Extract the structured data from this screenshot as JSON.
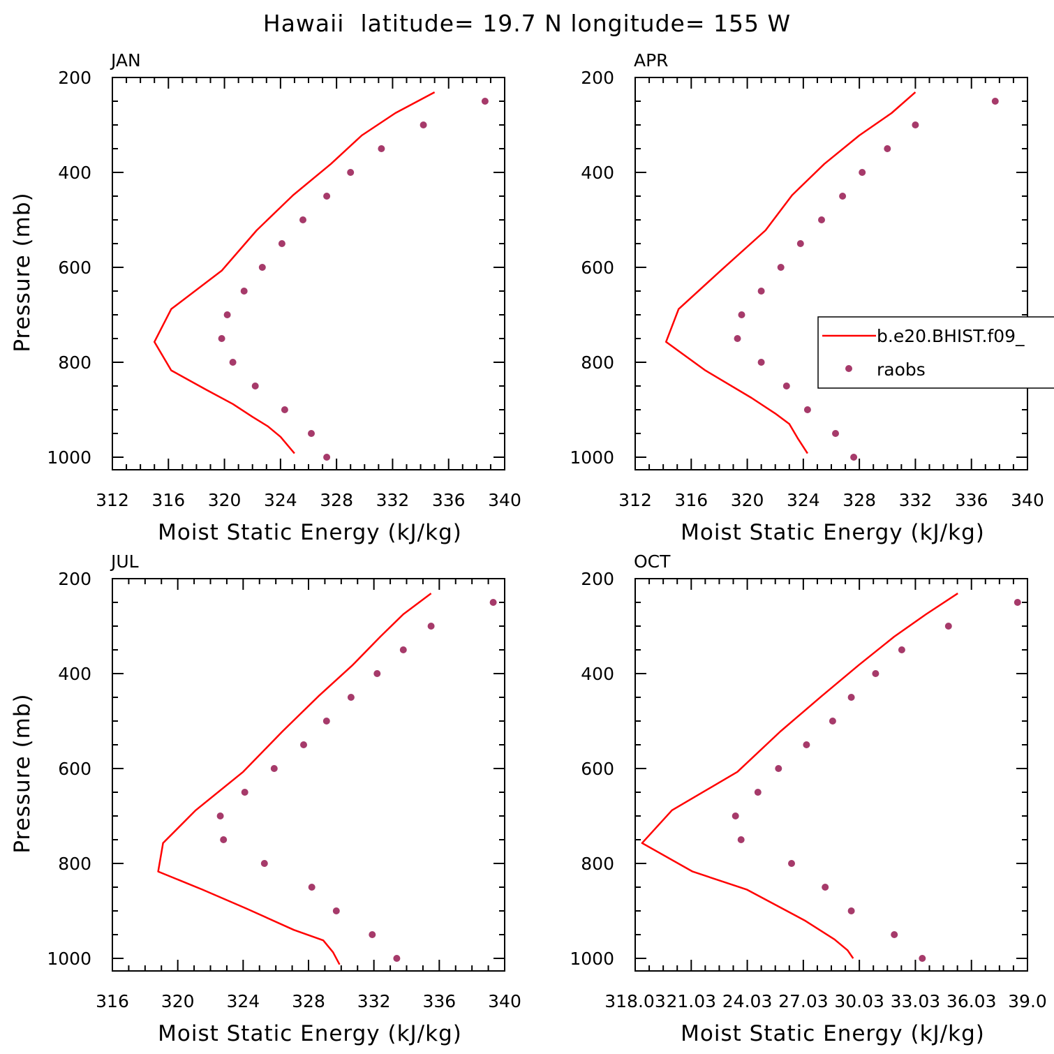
{
  "title": "Hawaii  latitude= 19.7 N longitude= 155 W",
  "colors": {
    "model": "#ff0000",
    "obs": "#a63a6a",
    "axis": "#000000"
  },
  "legend": {
    "model_label": "b.e20.BHIST.f09_",
    "obs_label": "raobs"
  },
  "chart_data": [
    {
      "type": "line",
      "panel": "JAN",
      "xlabel": "Moist Static Energy (kJ/kg)",
      "ylabel": "Pressure (mb)",
      "xlim": [
        312,
        340
      ],
      "ylim": [
        200,
        1000
      ],
      "y_inverted": true,
      "xticks": [
        "312",
        "316",
        "320",
        "324",
        "328",
        "332",
        "336",
        "340"
      ],
      "yticks": [
        "200",
        "400",
        "600",
        "800",
        "1000"
      ],
      "series": [
        {
          "kind": "line",
          "x": [
            335.0,
            332.2,
            329.8,
            327.6,
            324.9,
            322.3,
            319.8,
            316.2,
            315.0,
            316.2,
            318.7,
            320.6,
            322.0,
            323.1,
            324.0,
            325.0
          ],
          "y": [
            231,
            275,
            322,
            382,
            448,
            522,
            607,
            688,
            757,
            817,
            858,
            888,
            915,
            935,
            957,
            992
          ]
        },
        {
          "kind": "scatter",
          "x": [
            338.6,
            334.2,
            331.2,
            329.0,
            327.3,
            325.6,
            324.1,
            322.7,
            321.4,
            320.2,
            319.8,
            320.6,
            322.2,
            324.3,
            326.2,
            327.3
          ],
          "y": [
            250,
            300,
            350,
            400,
            450,
            500,
            550,
            600,
            650,
            700,
            750,
            800,
            850,
            900,
            950,
            1000
          ]
        }
      ]
    },
    {
      "type": "line",
      "panel": "APR",
      "xlabel": "Moist Static Energy (kJ/kg)",
      "ylabel": "",
      "xlim": [
        312,
        340
      ],
      "ylim": [
        200,
        1000
      ],
      "y_inverted": true,
      "xticks": [
        "312",
        "316",
        "320",
        "324",
        "328",
        "332",
        "336",
        "340"
      ],
      "yticks": [
        "200",
        "400",
        "600",
        "800",
        "1000"
      ],
      "series": [
        {
          "kind": "line",
          "x": [
            332.0,
            330.3,
            328.0,
            325.5,
            323.2,
            321.3,
            318.1,
            315.1,
            314.2,
            317.0,
            320.3,
            322.0,
            323.0,
            323.6,
            324.3
          ],
          "y": [
            231,
            275,
            322,
            382,
            448,
            522,
            607,
            688,
            757,
            817,
            875,
            908,
            930,
            960,
            992
          ]
        },
        {
          "kind": "scatter",
          "x": [
            337.7,
            332.0,
            330.0,
            328.2,
            326.8,
            325.3,
            323.8,
            322.4,
            321.0,
            319.6,
            319.3,
            321.0,
            322.8,
            324.3,
            326.3,
            327.6
          ],
          "y": [
            250,
            300,
            350,
            400,
            450,
            500,
            550,
            600,
            650,
            700,
            750,
            800,
            850,
            900,
            950,
            1000
          ]
        }
      ]
    },
    {
      "type": "line",
      "panel": "JUL",
      "xlabel": "Moist Static Energy (kJ/kg)",
      "ylabel": "Pressure (mb)",
      "xlim": [
        316,
        340
      ],
      "ylim": [
        200,
        1000
      ],
      "y_inverted": true,
      "xticks": [
        "316",
        "320",
        "324",
        "328",
        "332",
        "336",
        "340"
      ],
      "yticks": [
        "200",
        "400",
        "600",
        "800",
        "1000"
      ],
      "series": [
        {
          "kind": "line",
          "x": [
            335.5,
            333.8,
            332.4,
            330.7,
            328.6,
            326.4,
            324.0,
            321.1,
            319.1,
            318.8,
            321.5,
            324.2,
            327.1,
            328.9,
            329.5,
            329.9
          ],
          "y": [
            231,
            275,
            322,
            382,
            448,
            522,
            607,
            688,
            757,
            817,
            855,
            895,
            940,
            962,
            987,
            1013
          ]
        },
        {
          "kind": "scatter",
          "x": [
            339.3,
            335.5,
            333.8,
            332.2,
            330.6,
            329.1,
            327.7,
            325.9,
            324.1,
            322.6,
            322.8,
            325.3,
            328.2,
            329.7,
            331.9,
            333.4
          ],
          "y": [
            250,
            300,
            350,
            400,
            450,
            500,
            550,
            600,
            650,
            700,
            750,
            800,
            850,
            900,
            950,
            1000
          ]
        }
      ]
    },
    {
      "type": "line",
      "panel": "OCT",
      "xlabel": "Moist Static Energy (kJ/kg)",
      "ylabel": "",
      "xlim": [
        318.03,
        339.03
      ],
      "ylim": [
        200,
        1000
      ],
      "y_inverted": true,
      "xticks": [
        "318.03",
        "21.03",
        "24.03",
        "27.03",
        "30.03",
        "33.03",
        "36.03",
        "39.0"
      ],
      "yticks": [
        "200",
        "400",
        "600",
        "800",
        "1000"
      ],
      "series": [
        {
          "kind": "line",
          "x": [
            335.3,
            333.6,
            331.9,
            330.0,
            328.0,
            325.8,
            323.5,
            320.0,
            318.4,
            321.1,
            324.0,
            327.1,
            328.7,
            329.4,
            329.7
          ],
          "y": [
            231,
            275,
            322,
            382,
            448,
            522,
            607,
            688,
            757,
            817,
            855,
            920,
            960,
            983,
            1000
          ]
        },
        {
          "kind": "scatter",
          "x": [
            338.5,
            334.8,
            332.3,
            330.9,
            329.6,
            328.6,
            327.2,
            325.7,
            324.6,
            323.4,
            323.7,
            326.4,
            328.2,
            329.6,
            331.9,
            333.4
          ],
          "y": [
            250,
            300,
            350,
            400,
            450,
            500,
            550,
            600,
            650,
            700,
            750,
            800,
            850,
            900,
            950,
            1000
          ]
        }
      ]
    }
  ]
}
